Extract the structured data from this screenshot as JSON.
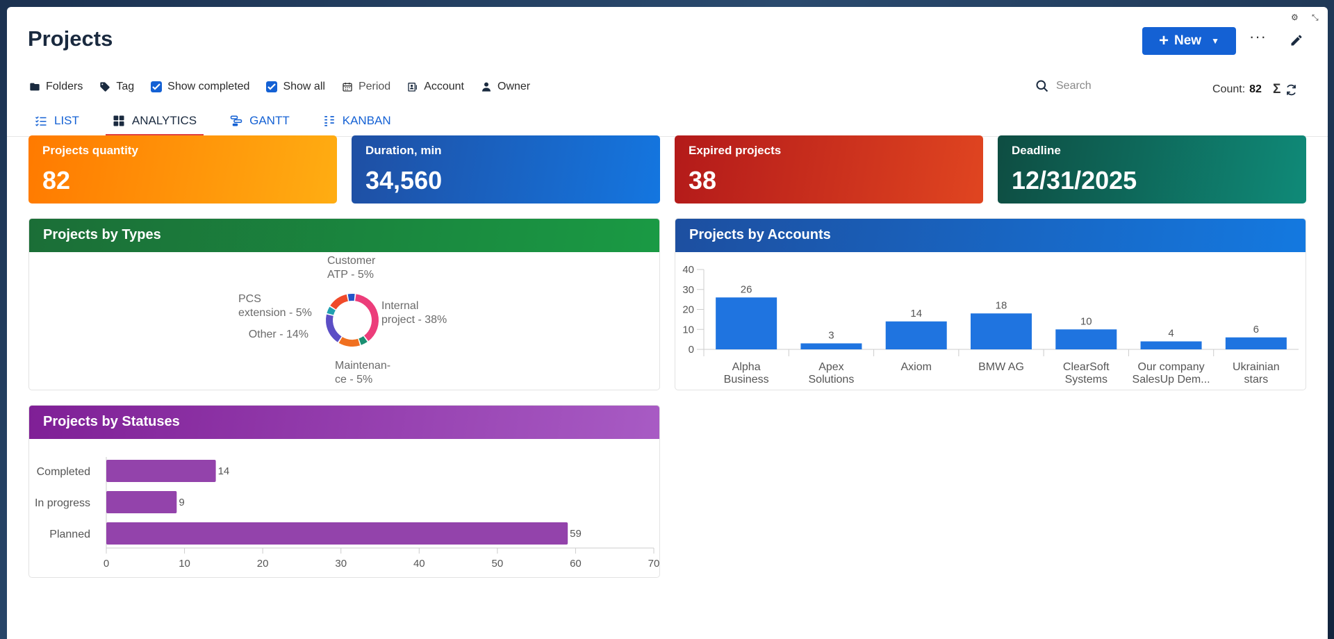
{
  "page": {
    "title": "Projects"
  },
  "header": {
    "new_label": "New",
    "more_label": "···"
  },
  "toolbar": {
    "folders": "Folders",
    "tag": "Tag",
    "show_completed": "Show completed",
    "show_all": "Show all",
    "period": "Period",
    "account": "Account",
    "owner": "Owner"
  },
  "search": {
    "placeholder": "Search"
  },
  "count": {
    "label": "Count:",
    "value": "82"
  },
  "tabs": [
    {
      "label": "LIST",
      "active": false
    },
    {
      "label": "ANALYTICS",
      "active": true
    },
    {
      "label": "GANTT",
      "active": false
    },
    {
      "label": "KANBAN",
      "active": false
    }
  ],
  "kpis": [
    {
      "label": "Projects quantity",
      "value": "82",
      "colors": [
        "#ff7a00",
        "#ffad12"
      ]
    },
    {
      "label": "Duration, min",
      "value": "34,560",
      "colors": [
        "#1f4fa3",
        "#1476e0"
      ]
    },
    {
      "label": "Expired projects",
      "value": "38",
      "colors": [
        "#b31a1a",
        "#e04520"
      ]
    },
    {
      "label": "Deadline",
      "value": "12/31/2025",
      "colors": [
        "#0e4d42",
        "#0f8a78"
      ]
    }
  ],
  "cards": {
    "types": {
      "title": "Projects by Types",
      "colors": [
        "#1b6e37",
        "#1a9a44"
      ]
    },
    "accounts": {
      "title": "Projects by Accounts",
      "colors": [
        "#1d4fa0",
        "#1479e0"
      ]
    },
    "statuses": {
      "title": "Projects by Statuses",
      "colors": [
        "#7f1f96",
        "#a85bc4"
      ]
    }
  },
  "chart_data": [
    {
      "type": "pie",
      "title": "Projects by Types",
      "donut": true,
      "slices": [
        {
          "label": "Internal project - 38%",
          "value": 38,
          "color": "#ec3d7a"
        },
        {
          "label": "Maintenance - 5%",
          "value": 5,
          "color": "#1a8f72"
        },
        {
          "label": "Other - 14%",
          "value": 14,
          "color": "#f07020"
        },
        {
          "label": "",
          "value": 20,
          "color": "#5b4ec5"
        },
        {
          "label": "PCS extension - 5%",
          "value": 5,
          "color": "#20a0b0"
        },
        {
          "label": "",
          "value": 13,
          "color": "#f04a2a"
        },
        {
          "label": "Customer ATP - 5%",
          "value": 5,
          "color": "#2455c8"
        }
      ],
      "label_text": {
        "internal": [
          "Internal",
          "project - 38%"
        ],
        "maintenance": [
          "Maintenan-",
          "ce - 5%"
        ],
        "other": [
          "Other - 14%"
        ],
        "pcs": [
          "PCS",
          "extension - 5%"
        ],
        "customer": [
          "Customer",
          "ATP - 5%"
        ]
      }
    },
    {
      "type": "bar",
      "title": "Projects by Accounts",
      "categories": [
        [
          "Alpha",
          "Business"
        ],
        [
          "Apex",
          "Solutions"
        ],
        [
          "Axiom"
        ],
        [
          "BMW AG"
        ],
        [
          "ClearSoft",
          "Systems"
        ],
        [
          "Our company",
          "SalesUp Dem..."
        ],
        [
          "Ukrainian",
          "stars"
        ]
      ],
      "values": [
        26,
        3,
        14,
        18,
        10,
        4,
        6
      ],
      "ylim": [
        0,
        40
      ],
      "yticks": [
        0,
        10,
        20,
        30,
        40
      ],
      "color": "#1f74e0"
    },
    {
      "type": "bar",
      "orientation": "horizontal",
      "title": "Projects by Statuses",
      "categories": [
        "Completed",
        "In progress",
        "Planned"
      ],
      "values": [
        14,
        9,
        59
      ],
      "xlim": [
        0,
        70
      ],
      "xticks": [
        0,
        10,
        20,
        30,
        40,
        50,
        60,
        70
      ],
      "color": "#9343ab"
    }
  ]
}
